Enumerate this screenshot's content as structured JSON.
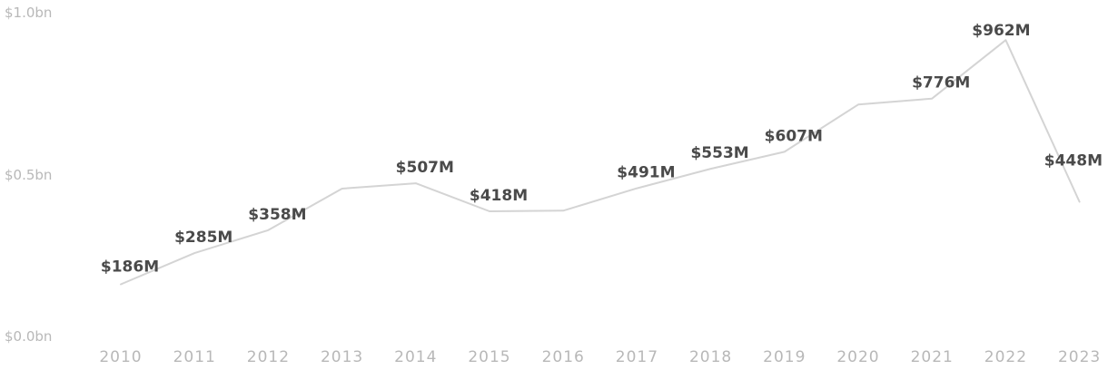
{
  "chart_data": {
    "type": "line",
    "title": "",
    "xlabel": "",
    "ylabel": "",
    "categories": [
      "2010",
      "2011",
      "2012",
      "2013",
      "2014",
      "2015",
      "2016",
      "2017",
      "2018",
      "2019",
      "2020",
      "2021",
      "2022",
      "2023"
    ],
    "values": [
      186,
      285,
      358,
      490,
      507,
      418,
      420,
      491,
      553,
      607,
      757,
      776,
      962,
      448
    ],
    "data_labels": [
      "$186M",
      "$285M",
      "$358M",
      "",
      "$507M",
      "$418M",
      "",
      "$491M",
      "$553M",
      "$607M",
      "",
      "$776M",
      "$962M",
      "$448M"
    ],
    "y_ticks": [
      {
        "value": 1000,
        "label": "$1.0bn"
      },
      {
        "value": 500,
        "label": "$0.5bn"
      },
      {
        "value": 0,
        "label": "$0.0bn"
      }
    ],
    "ylim": [
      0,
      1000
    ],
    "grid": false,
    "legend": "none",
    "colors": {
      "line": "#d4d4d4",
      "label": "#4a4a4a",
      "tick": "#b8b8b8"
    }
  }
}
